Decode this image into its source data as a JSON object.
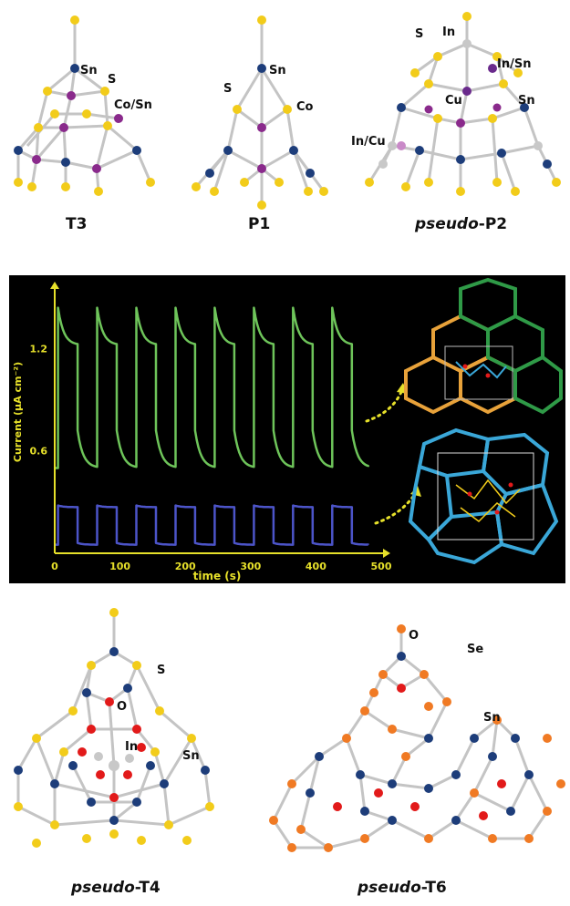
{
  "top_structures": [
    {
      "name": "T3",
      "atom_labels": [
        "Sn",
        "S",
        "Co/Sn"
      ]
    },
    {
      "name": "P1",
      "atom_labels": [
        "S",
        "Sn",
        "Co"
      ]
    },
    {
      "name_italic": "pseudo",
      "name_suffix": "-P2",
      "atom_labels": [
        "S",
        "In",
        "In/Sn",
        "Cu",
        "Sn",
        "In/Cu"
      ]
    }
  ],
  "bottom_structures": [
    {
      "name_italic": "pseudo",
      "name_suffix": "-T4",
      "atom_labels": [
        "S",
        "O",
        "In",
        "Sn"
      ]
    },
    {
      "name_italic": "pseudo",
      "name_suffix": "-T6",
      "atom_labels": [
        "O",
        "Se",
        "Sn"
      ]
    }
  ],
  "colors": {
    "sulfur": "#f2cc1a",
    "tin": "#1d3d7a",
    "cobalt": "#8a2a8c",
    "indium": "#c8c8c8",
    "oxygen": "#e21a1a",
    "selenium": "#f07a24",
    "bond": "#c4c4c4",
    "chart_bg": "#000000",
    "axis": "#e6e02a",
    "green_series": "#6ec45a",
    "blue_series": "#4c54c8",
    "net_orange": "#e8a23a",
    "net_green": "#2f9a47",
    "net_blue": "#3aa7d8"
  },
  "chart_data": {
    "type": "line",
    "xlabel": "time (s)",
    "ylabel": "Current (μA cm⁻²)",
    "xlim": [
      0,
      500
    ],
    "ylim": [
      0.0,
      1.55
    ],
    "x_ticks": [
      0,
      100,
      200,
      300,
      400,
      500
    ],
    "y_ticks": [
      0.6,
      1.2
    ],
    "grid": false,
    "cycle_period_s": 60,
    "light_on_s": 30,
    "series": [
      {
        "key": "green",
        "on_start": 1.44,
        "on_end": 1.22,
        "off_start": 0.72,
        "off_end": 0.5,
        "start_x": 0,
        "end_x": 480
      },
      {
        "key": "blue",
        "on_start": 0.28,
        "on_end": 0.27,
        "off_start": 0.06,
        "off_end": 0.05,
        "start_x": 0,
        "end_x": 480
      }
    ]
  }
}
